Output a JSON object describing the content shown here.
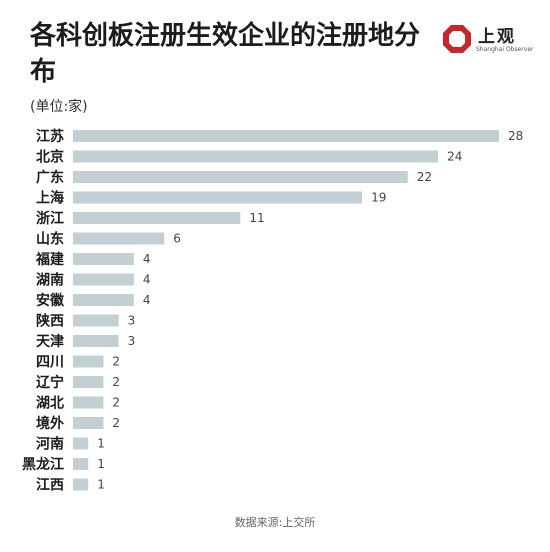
{
  "header": {
    "title": "各科创板注册生效企业的注册地分布",
    "unit": "(单位:家)"
  },
  "logo": {
    "name": "上观",
    "sub": "Shanghai Observer",
    "color": "#c8262e"
  },
  "source": "数据来源:上交所",
  "chart_data": {
    "type": "bar",
    "orientation": "horizontal",
    "categories": [
      "江苏",
      "北京",
      "广东",
      "上海",
      "浙江",
      "山东",
      "福建",
      "湖南",
      "安徽",
      "陕西",
      "天津",
      "四川",
      "辽宁",
      "湖北",
      "境外",
      "河南",
      "黑龙江",
      "江西"
    ],
    "values": [
      28,
      24,
      22,
      19,
      11,
      6,
      4,
      4,
      4,
      3,
      3,
      2,
      2,
      2,
      2,
      1,
      1,
      1
    ],
    "xlim": [
      0,
      28
    ],
    "bar_color": "#c2cfd3",
    "grid": false,
    "legend": "none"
  }
}
